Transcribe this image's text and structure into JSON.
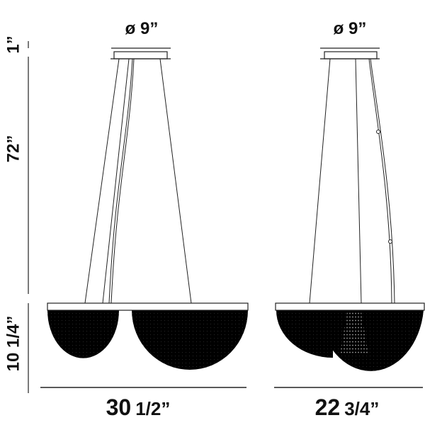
{
  "colors": {
    "line": "#1a1a1a",
    "crystal": "#000000",
    "background": "#ffffff"
  },
  "front_view": {
    "canopy_diameter": "ø 9”",
    "width_whole": "30",
    "width_fraction": "1/2”"
  },
  "side_view": {
    "canopy_diameter": "ø 9”",
    "width_whole": "22",
    "width_fraction": "3/4”"
  },
  "heights": {
    "canopy": "1”",
    "cable": "72”",
    "fixture": "10 1/4”"
  }
}
